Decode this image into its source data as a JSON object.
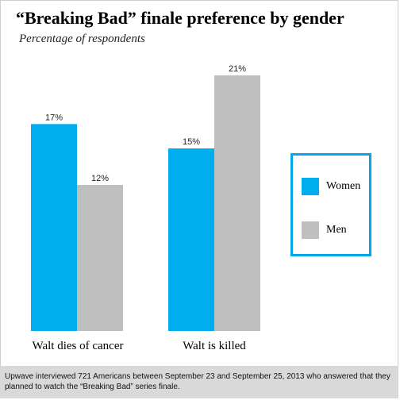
{
  "chart_data": {
    "type": "bar",
    "title": "“Breaking Bad” finale preference by gender",
    "subtitle": "Percentage of respondents",
    "categories": [
      "Walt dies of cancer",
      "Walt is killed"
    ],
    "series": [
      {
        "name": "Women",
        "values": [
          17,
          15
        ],
        "color": "#00aeef",
        "labels": [
          "17%",
          "15%"
        ]
      },
      {
        "name": "Men",
        "values": [
          12,
          21
        ],
        "color": "#bfbfbf",
        "labels": [
          "12%",
          "21%"
        ]
      }
    ],
    "ylim": [
      0,
      21
    ],
    "grid": false,
    "legend": "right",
    "footnote": "Upwave interviewed 721 Americans between September 23 and September 25, 2013 who answered that they planned to watch the “Breaking Bad” series finale."
  }
}
